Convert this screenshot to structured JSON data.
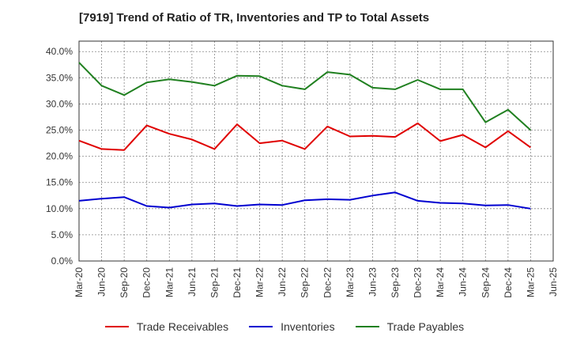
{
  "title": "[7919]  Trend of Ratio of TR, Inventories and TP to Total Assets",
  "chart_data": {
    "type": "line",
    "title": "[7919]  Trend of Ratio of TR, Inventories and TP to Total Assets",
    "xlabel": "",
    "ylabel": "",
    "ylim": [
      0,
      42
    ],
    "y_ticks": [
      "0.0%",
      "5.0%",
      "10.0%",
      "15.0%",
      "20.0%",
      "25.0%",
      "30.0%",
      "35.0%",
      "40.0%"
    ],
    "y_tick_values": [
      0,
      5,
      10,
      15,
      20,
      25,
      30,
      35,
      40
    ],
    "x_ticks": [
      "Mar-20",
      "Jun-20",
      "Sep-20",
      "Dec-20",
      "Mar-21",
      "Jun-21",
      "Sep-21",
      "Dec-21",
      "Mar-22",
      "Jun-22",
      "Sep-22",
      "Dec-22",
      "Mar-23",
      "Jun-23",
      "Sep-23",
      "Dec-23",
      "Mar-24",
      "Jun-24",
      "Sep-24",
      "Dec-24",
      "Mar-25",
      "Jun-25"
    ],
    "categories": [
      "Mar-20",
      "Jun-20",
      "Sep-20",
      "Dec-20",
      "Mar-21",
      "Jun-21",
      "Sep-21",
      "Dec-21",
      "Mar-22",
      "Jun-22",
      "Sep-22",
      "Dec-22",
      "Mar-23",
      "Jun-23",
      "Sep-23",
      "Dec-23",
      "Mar-24",
      "Jun-24",
      "Sep-24",
      "Dec-24",
      "Mar-25"
    ],
    "grid": true,
    "legend_position": "bottom",
    "series": [
      {
        "name": "Trade Receivables",
        "color": "#e00000",
        "values": [
          23.0,
          21.4,
          21.2,
          25.9,
          24.3,
          23.2,
          21.4,
          26.1,
          22.5,
          23.0,
          21.4,
          25.7,
          23.8,
          23.9,
          23.7,
          26.3,
          22.9,
          24.1,
          21.7,
          24.8,
          21.7
        ]
      },
      {
        "name": "Inventories",
        "color": "#0000d0",
        "values": [
          11.5,
          11.9,
          12.2,
          10.5,
          10.2,
          10.8,
          11.0,
          10.5,
          10.8,
          10.7,
          11.6,
          11.8,
          11.7,
          12.5,
          13.1,
          11.5,
          11.1,
          11.0,
          10.6,
          10.7,
          10.0
        ]
      },
      {
        "name": "Trade Payables",
        "color": "#208020",
        "values": [
          37.9,
          33.5,
          31.7,
          34.1,
          34.7,
          34.2,
          33.5,
          35.4,
          35.3,
          33.5,
          32.8,
          36.1,
          35.6,
          33.1,
          32.8,
          34.6,
          32.8,
          32.8,
          26.5,
          28.9,
          25.0
        ]
      }
    ]
  }
}
